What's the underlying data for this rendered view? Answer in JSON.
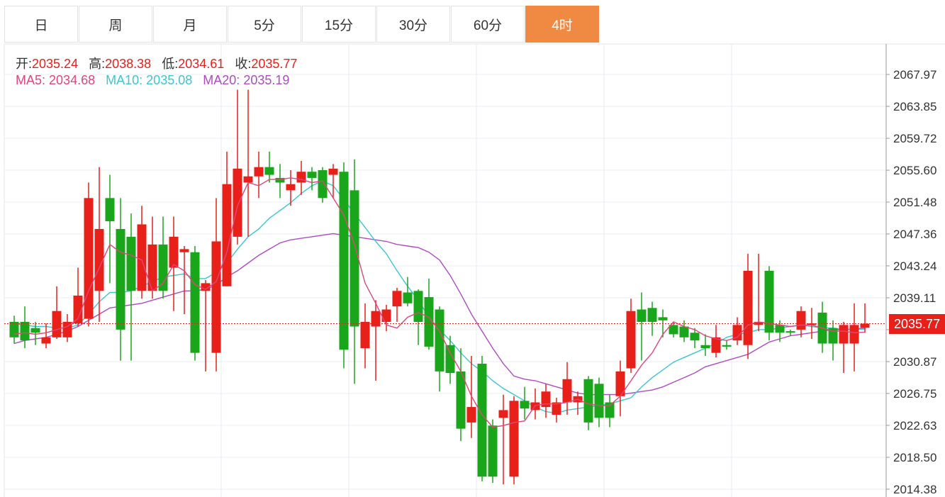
{
  "tabs": [
    {
      "label": "日",
      "active": false
    },
    {
      "label": "周",
      "active": false
    },
    {
      "label": "月",
      "active": false
    },
    {
      "label": "5分",
      "active": false
    },
    {
      "label": "15分",
      "active": false
    },
    {
      "label": "30分",
      "active": false
    },
    {
      "label": "60分",
      "active": false
    },
    {
      "label": "4时",
      "active": true
    }
  ],
  "ohlc": {
    "open_label": "开:",
    "open": "2035.24",
    "high_label": "高:",
    "high": "2038.38",
    "low_label": "低:",
    "low": "2034.61",
    "close_label": "收:",
    "close": "2035.77"
  },
  "ma": {
    "ma5_label": "MA5:",
    "ma5": "2034.68",
    "ma10_label": "MA10:",
    "ma10": "2035.08",
    "ma20_label": "MA20:",
    "ma20": "2035.19"
  },
  "current_price": "2035.77",
  "colors": {
    "up": "#e8201a",
    "down": "#1aa61a",
    "ma5": "#e0457b",
    "ma10": "#3cc6d3",
    "ma20": "#b04ac3",
    "accent": "#f08a43"
  },
  "chart_data": {
    "type": "candlestick",
    "y_ticks": [
      2067.97,
      2063.85,
      2059.72,
      2055.6,
      2051.48,
      2047.36,
      2043.24,
      2039.11,
      2034.99,
      2030.87,
      2026.75,
      2022.63,
      2018.5,
      2014.38
    ],
    "ylim": [
      2014.0,
      2070.0
    ],
    "current": 2035.77,
    "candles": [
      [
        2036.0,
        2034.0,
        2036.8,
        2033.2
      ],
      [
        2036.0,
        2033.6,
        2038.0,
        2032.6
      ],
      [
        2035.2,
        2034.6,
        2036.0,
        2033.0
      ],
      [
        2033.2,
        2034.0,
        2035.8,
        2032.6
      ],
      [
        2034.0,
        2037.4,
        2040.6,
        2033.8
      ],
      [
        2034.0,
        2036.0,
        2037.0,
        2033.4
      ],
      [
        2035.8,
        2039.4,
        2043.0,
        2035.4
      ],
      [
        2036.4,
        2052.0,
        2054.0,
        2035.4
      ],
      [
        2040.0,
        2048.0,
        2056.0,
        2036.0
      ],
      [
        2052.0,
        2049.0,
        2055.0,
        2041.0
      ],
      [
        2048.0,
        2035.0,
        2052.0,
        2031.0
      ],
      [
        2047.0,
        2040.0,
        2050.0,
        2031.0
      ],
      [
        2040.0,
        2048.6,
        2051.0,
        2039.0
      ],
      [
        2040.0,
        2046.0,
        2049.6,
        2039.0
      ],
      [
        2046.0,
        2040.0,
        2049.6,
        2039.0
      ],
      [
        2043.0,
        2047.0,
        2049.6,
        2037.4
      ],
      [
        2045.0,
        2045.4,
        2045.8,
        2037.0
      ],
      [
        2045.0,
        2032.0,
        2045.8,
        2031.0
      ],
      [
        2040.0,
        2041.0,
        2041.4,
        2029.6
      ],
      [
        2032.0,
        2046.4,
        2052.0,
        2029.6
      ],
      [
        2040.6,
        2053.8,
        2058.0,
        2040.6
      ],
      [
        2047.0,
        2055.8,
        2066.0,
        2046.0
      ],
      [
        2054.0,
        2054.8,
        2066.0,
        2047.0
      ],
      [
        2054.8,
        2056.0,
        2058.0,
        2052.0
      ],
      [
        2056.0,
        2055.0,
        2058.0,
        2054.0
      ],
      [
        2054.6,
        2054.0,
        2056.4,
        2052.0
      ],
      [
        2053.0,
        2053.8,
        2055.6,
        2051.0
      ],
      [
        2054.0,
        2055.4,
        2056.8,
        2052.4
      ],
      [
        2055.4,
        2054.6,
        2056.0,
        2053.0
      ],
      [
        2055.6,
        2052.0,
        2056.0,
        2051.4
      ],
      [
        2055.0,
        2055.8,
        2056.4,
        2052.0
      ],
      [
        2055.4,
        2032.4,
        2056.6,
        2030.0
      ],
      [
        2053.0,
        2035.4,
        2057.0,
        2028.0
      ],
      [
        2032.6,
        2036.0,
        2038.4,
        2030.0
      ],
      [
        2035.4,
        2037.4,
        2038.8,
        2028.4
      ],
      [
        2036.0,
        2037.6,
        2038.2,
        2034.8
      ],
      [
        2038.0,
        2040.0,
        2040.4,
        2036.0
      ],
      [
        2039.8,
        2038.4,
        2041.8,
        2038.0
      ],
      [
        2040.0,
        2036.0,
        2040.2,
        2033.0
      ],
      [
        2039.2,
        2032.8,
        2041.6,
        2032.4
      ],
      [
        2037.6,
        2029.6,
        2038.0,
        2027.0
      ],
      [
        2033.0,
        2029.4,
        2034.2,
        2028.0
      ],
      [
        2029.6,
        2022.2,
        2032.6,
        2020.6
      ],
      [
        2023.0,
        2025.0,
        2031.6,
        2021.0
      ],
      [
        2030.6,
        2016.0,
        2031.6,
        2015.4
      ],
      [
        2022.6,
        2016.0,
        2023.4,
        2015.2
      ],
      [
        2023.6,
        2024.6,
        2026.6,
        2015.0
      ],
      [
        2016.0,
        2025.8,
        2026.4,
        2015.0
      ],
      [
        2025.8,
        2024.8,
        2027.6,
        2023.4
      ],
      [
        2024.6,
        2025.6,
        2027.4,
        2023.4
      ],
      [
        2025.0,
        2027.0,
        2028.0,
        2023.6
      ],
      [
        2024.0,
        2025.6,
        2026.2,
        2023.0
      ],
      [
        2025.6,
        2028.6,
        2030.8,
        2024.0
      ],
      [
        2025.6,
        2026.4,
        2027.0,
        2024.0
      ],
      [
        2028.6,
        2023.0,
        2029.0,
        2022.0
      ],
      [
        2028.0,
        2023.6,
        2028.8,
        2022.4
      ],
      [
        2025.6,
        2023.6,
        2026.6,
        2022.4
      ],
      [
        2026.4,
        2029.6,
        2031.0,
        2023.8
      ],
      [
        2030.0,
        2037.4,
        2039.0,
        2029.4
      ],
      [
        2037.6,
        2036.0,
        2039.8,
        2031.0
      ],
      [
        2037.8,
        2036.0,
        2038.6,
        2034.2
      ],
      [
        2036.6,
        2036.2,
        2037.6,
        2034.0
      ],
      [
        2035.6,
        2034.4,
        2036.0,
        2034.0
      ],
      [
        2035.4,
        2034.0,
        2036.2,
        2033.4
      ],
      [
        2034.6,
        2033.6,
        2035.2,
        2032.6
      ],
      [
        2033.0,
        2032.6,
        2034.4,
        2031.6
      ],
      [
        2032.0,
        2034.0,
        2035.6,
        2031.4
      ],
      [
        2033.0,
        2032.8,
        2033.6,
        2032.4
      ],
      [
        2033.6,
        2035.6,
        2036.6,
        2033.0
      ],
      [
        2033.0,
        2042.6,
        2044.8,
        2031.2
      ],
      [
        2035.6,
        2036.0,
        2044.8,
        2034.8
      ],
      [
        2042.6,
        2034.6,
        2043.2,
        2033.6
      ],
      [
        2035.6,
        2034.6,
        2036.2,
        2033.4
      ],
      [
        2034.8,
        2034.6,
        2035.0,
        2034.2
      ],
      [
        2035.0,
        2037.4,
        2038.0,
        2034.0
      ],
      [
        2035.6,
        2035.8,
        2037.8,
        2033.8
      ],
      [
        2037.2,
        2033.2,
        2038.6,
        2032.0
      ],
      [
        2035.2,
        2033.2,
        2036.2,
        2031.0
      ],
      [
        2033.2,
        2035.6,
        2036.0,
        2029.4
      ],
      [
        2033.2,
        2035.6,
        2038.4,
        2029.6
      ],
      [
        2035.24,
        2035.77,
        2038.38,
        2034.61
      ]
    ],
    "ma5": [
      2034.4,
      2034.6,
      2034.4,
      2034.6,
      2035.0,
      2035.4,
      2036.4,
      2040.0,
      2043.0,
      2046.0,
      2045.0,
      2044.6,
      2044.0,
      2040.0,
      2041.0,
      2043.4,
      2042.6,
      2040.8,
      2040.2,
      2041.2,
      2045.0,
      2051.0,
      2054.0,
      2053.6,
      2054.4,
      2054.4,
      2054.6,
      2054.4,
      2054.0,
      2054.2,
      2052.0,
      2049.8,
      2046.0,
      2041.0,
      2038.4,
      2035.6,
      2035.2,
      2036.6,
      2037.2,
      2036.6,
      2034.8,
      2032.0,
      2029.6,
      2026.4,
      2024.0,
      2022.4,
      2022.6,
      2023.0,
      2023.2,
      2025.2,
      2025.4,
      2025.4,
      2025.6,
      2026.0,
      2025.4,
      2025.2,
      2025.2,
      2026.4,
      2028.4,
      2030.4,
      2032.0,
      2034.4,
      2036.0,
      2035.4,
      2035.0,
      2034.2,
      2033.8,
      2033.6,
      2034.0,
      2035.6,
      2036.0,
      2035.8,
      2035.6,
      2035.4,
      2035.6,
      2035.6,
      2035.2,
      2034.8,
      2034.8,
      2034.6,
      2034.68
    ],
    "ma10": [
      2035.8,
      2035.6,
      2035.4,
      2035.4,
      2035.2,
      2035.2,
      2035.6,
      2037.0,
      2038.6,
      2039.8,
      2039.8,
      2040.0,
      2040.6,
      2041.2,
      2041.8,
      2042.0,
      2042.2,
      2041.6,
      2041.6,
      2042.4,
      2043.6,
      2045.4,
      2047.0,
      2048.0,
      2049.4,
      2050.4,
      2051.4,
      2052.6,
      2053.6,
      2054.2,
      2053.6,
      2051.8,
      2050.0,
      2048.2,
      2046.4,
      2044.8,
      2042.6,
      2040.6,
      2038.8,
      2036.6,
      2035.0,
      2033.6,
      2032.0,
      2030.6,
      2029.6,
      2028.4,
      2027.4,
      2026.6,
      2025.8,
      2025.0,
      2024.4,
      2024.2,
      2024.6,
      2024.8,
      2025.0,
      2025.2,
      2025.4,
      2025.8,
      2026.2,
      2027.6,
      2028.8,
      2029.8,
      2030.8,
      2031.4,
      2032.0,
      2032.6,
      2033.2,
      2034.0,
      2034.4,
      2034.6,
      2035.0,
      2035.0,
      2035.2,
      2035.4,
      2035.6,
      2035.4,
      2035.2,
      2035.2,
      2035.0,
      2035.0,
      2035.08
    ],
    "ma20": [
      2033.2,
      2033.6,
      2033.8,
      2034.0,
      2034.4,
      2034.8,
      2035.4,
      2036.2,
      2037.0,
      2037.8,
      2038.0,
      2038.2,
      2038.4,
      2038.8,
      2039.2,
      2039.6,
      2040.0,
      2040.0,
      2040.2,
      2040.8,
      2041.8,
      2042.6,
      2043.6,
      2044.6,
      2045.4,
      2046.2,
      2046.6,
      2046.8,
      2047.0,
      2047.2,
      2047.4,
      2047.2,
      2047.0,
      2046.8,
      2046.6,
      2046.4,
      2046.0,
      2045.8,
      2045.6,
      2045.0,
      2044.0,
      2042.0,
      2039.6,
      2037.0,
      2034.8,
      2032.6,
      2030.6,
      2029.0,
      2028.6,
      2028.4,
      2028.0,
      2027.6,
      2027.2,
      2026.8,
      2026.6,
      2026.6,
      2026.6,
      2026.6,
      2026.8,
      2027.0,
      2027.2,
      2027.6,
      2028.2,
      2028.8,
      2029.4,
      2030.2,
      2030.6,
      2031.0,
      2031.4,
      2031.8,
      2032.6,
      2033.4,
      2033.8,
      2034.2,
      2034.4,
      2034.6,
      2034.8,
      2035.0,
      2035.0,
      2035.1,
      2035.19
    ]
  }
}
